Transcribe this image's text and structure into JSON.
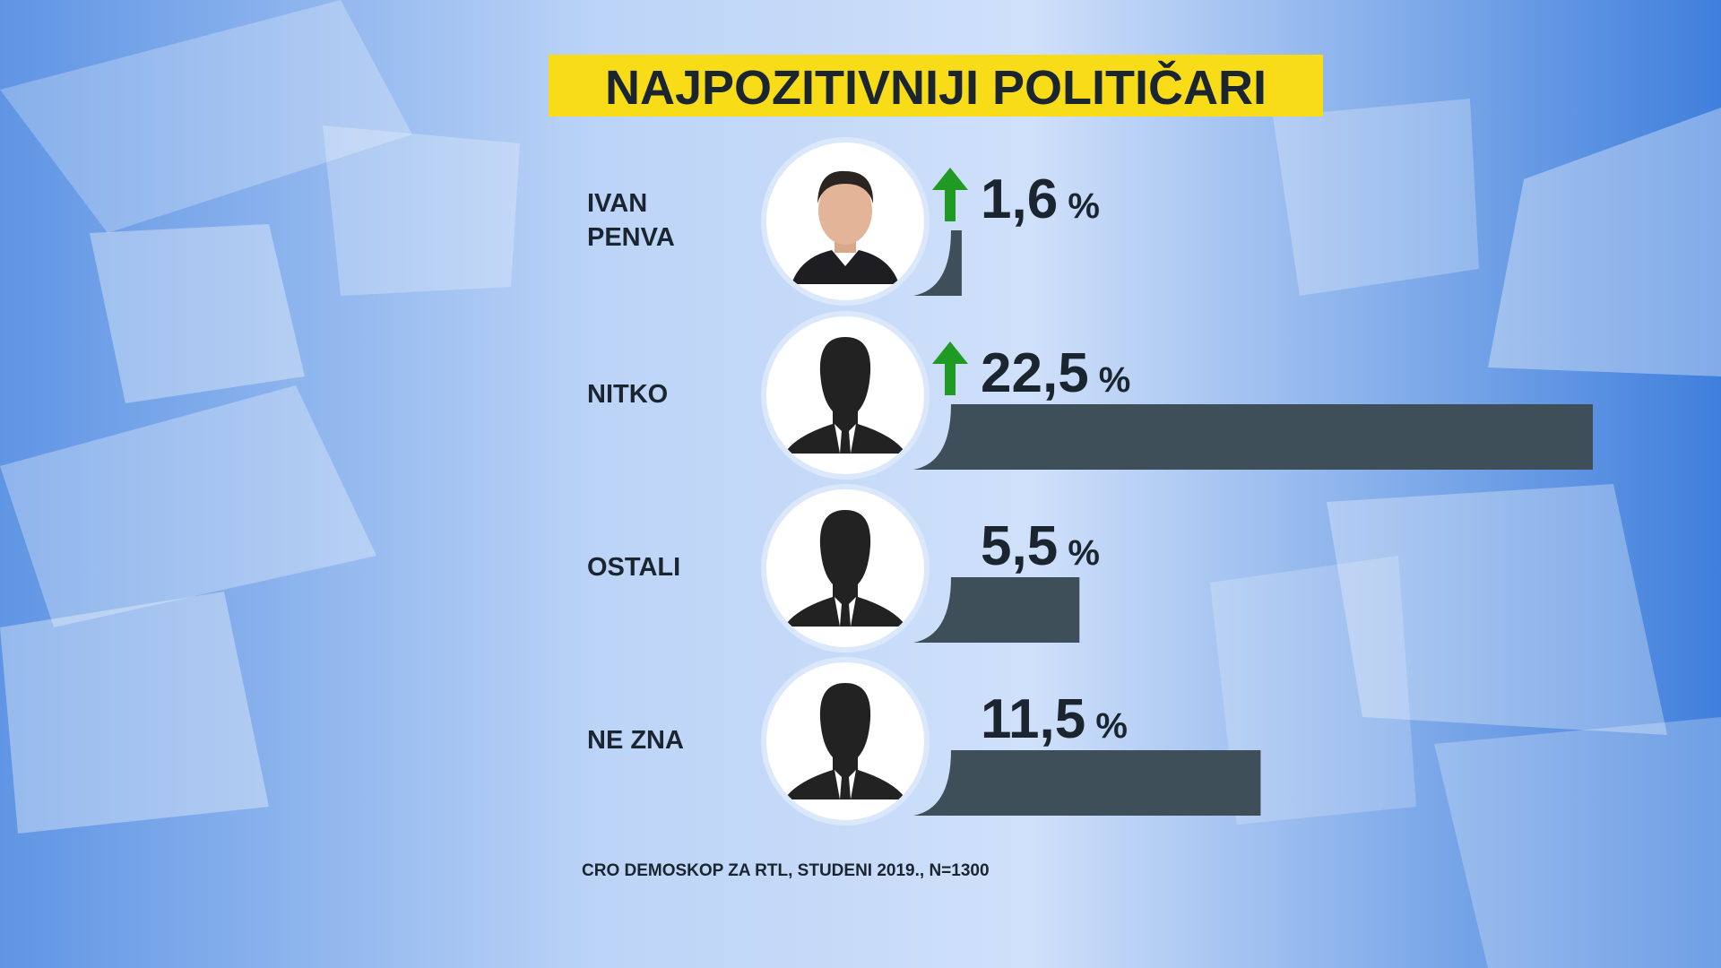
{
  "chart_data": {
    "type": "hbar",
    "title": "NAJPOZITIVNIJI POLITIČARI",
    "categories": [
      "IVAN PENVA",
      "NITKO",
      "OSTALI",
      "NE ZNA"
    ],
    "values": [
      1.6,
      22.5,
      5.5,
      11.5
    ],
    "value_labels": [
      "1,6 %",
      "22,5 %",
      "5,5 %",
      "11,5 %"
    ],
    "trend": [
      "up",
      "up",
      null,
      null
    ],
    "color": "#3e4f59",
    "source": "CRO DEMOSKOP ZA RTL, STUDENI 2019., N=1300"
  }
}
